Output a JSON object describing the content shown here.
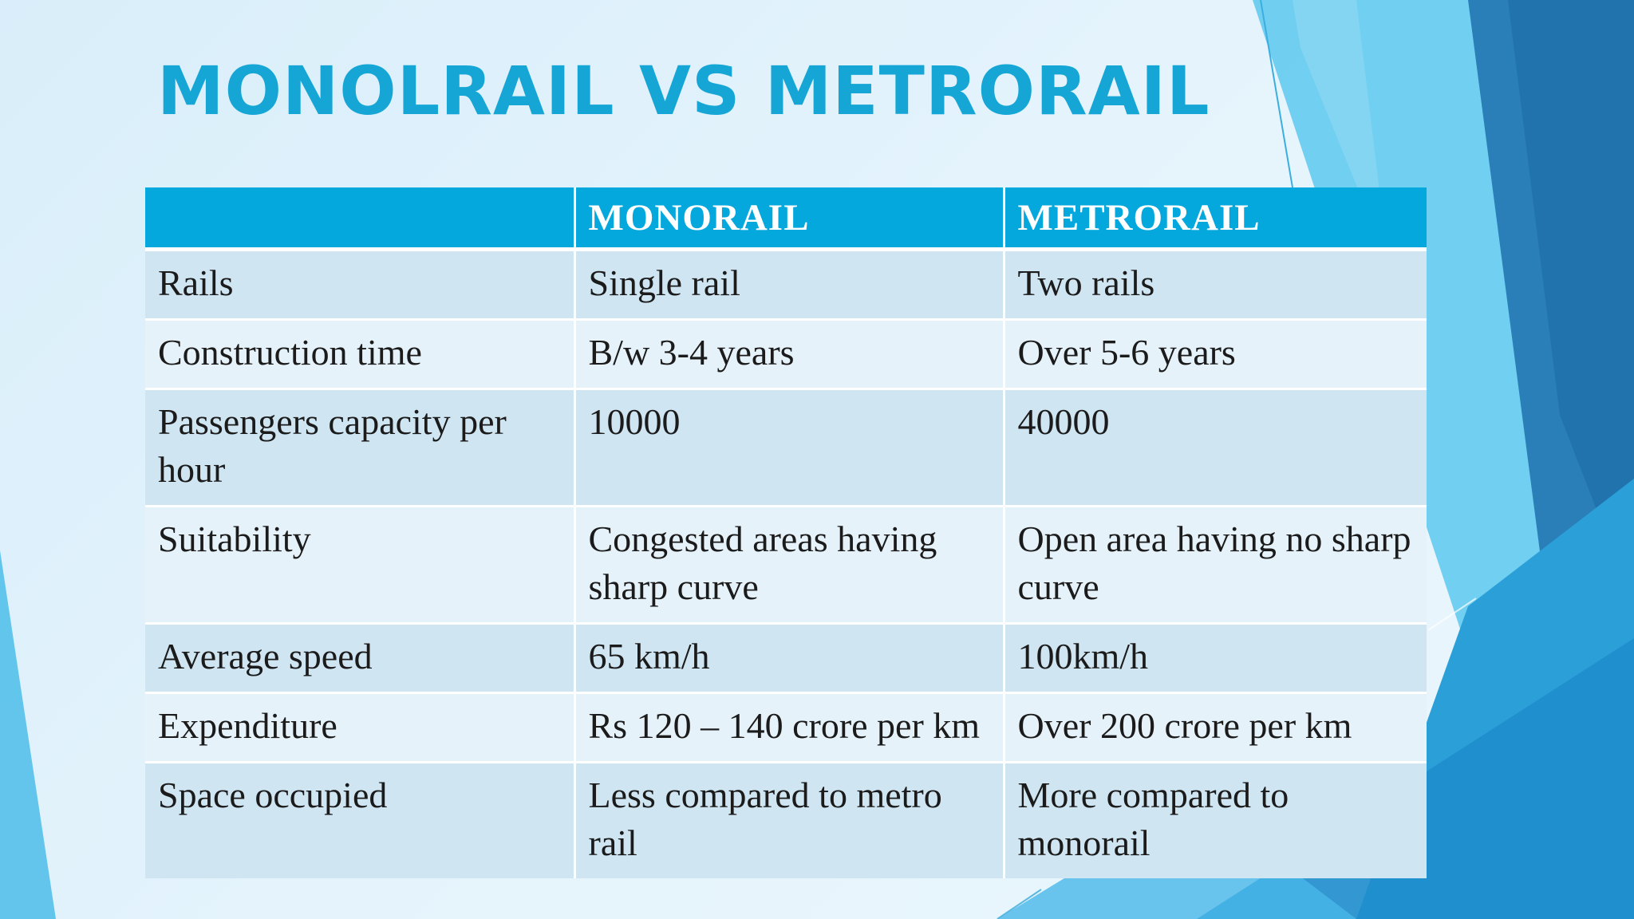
{
  "slide": {
    "title": "MONOLRAIL VS METRORAIL"
  },
  "table": {
    "headers": [
      "",
      "MONORAIL",
      "METRORAIL"
    ],
    "rows": [
      [
        "Rails",
        "Single rail",
        "Two rails"
      ],
      [
        "Construction time",
        "B/w 3-4 years",
        "Over 5-6 years"
      ],
      [
        "Passengers capacity per hour",
        "10000",
        "40000"
      ],
      [
        "Suitability",
        "Congested areas having sharp curve",
        "Open area having no sharp curve"
      ],
      [
        "Average speed",
        "65 km/h",
        "100km/h"
      ],
      [
        "Expenditure",
        "Rs 120 – 140 crore per km",
        "Over 200 crore per km"
      ],
      [
        "Space occupied",
        "Less compared to metro rail",
        "More compared to monorail"
      ]
    ]
  },
  "colors": {
    "title": "#16a6d6",
    "header_bg": "#05a8dc",
    "row_dark": "#cfe5f2",
    "row_light": "#e6f2f9"
  }
}
